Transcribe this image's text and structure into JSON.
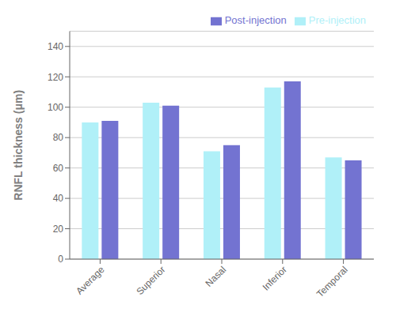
{
  "chart_data": {
    "type": "bar",
    "categories": [
      "Average",
      "Superior",
      "Nasal",
      "Inferior",
      "Temporal"
    ],
    "series": [
      {
        "name": "Pre-injection",
        "color": "#b0f0f8",
        "values": [
          90,
          103,
          71,
          113,
          67
        ]
      },
      {
        "name": "Post-injection",
        "color": "#7373d1",
        "values": [
          91,
          101,
          75,
          117,
          65
        ]
      }
    ],
    "ylabel": "RNFL thickness (μm)",
    "ylim": [
      0,
      150
    ],
    "yticks": [
      0,
      20,
      40,
      60,
      80,
      100,
      120,
      140
    ],
    "grid": true,
    "legend": "upper right"
  }
}
